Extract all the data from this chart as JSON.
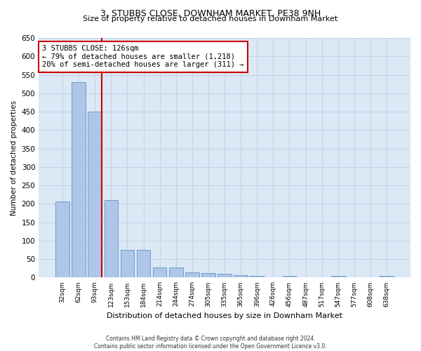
{
  "title": "3, STUBBS CLOSE, DOWNHAM MARKET, PE38 9NH",
  "subtitle": "Size of property relative to detached houses in Downham Market",
  "xlabel": "Distribution of detached houses by size in Downham Market",
  "ylabel": "Number of detached properties",
  "categories": [
    "32sqm",
    "62sqm",
    "93sqm",
    "123sqm",
    "153sqm",
    "184sqm",
    "214sqm",
    "244sqm",
    "274sqm",
    "305sqm",
    "335sqm",
    "365sqm",
    "396sqm",
    "426sqm",
    "456sqm",
    "487sqm",
    "517sqm",
    "547sqm",
    "577sqm",
    "608sqm",
    "638sqm"
  ],
  "values": [
    207,
    530,
    450,
    210,
    75,
    75,
    27,
    27,
    15,
    12,
    10,
    7,
    5,
    0,
    5,
    0,
    0,
    5,
    0,
    0,
    5
  ],
  "bar_color": "#aec6e8",
  "bar_edge_color": "#6aa0c8",
  "marker_label": "3 STUBBS CLOSE: 126sqm",
  "annotation_line1": "← 79% of detached houses are smaller (1,218)",
  "annotation_line2": "20% of semi-detached houses are larger (311) →",
  "annotation_box_color": "#ffffff",
  "annotation_box_edge": "#cc0000",
  "marker_line_color": "#cc0000",
  "background_color": "#dce8f5",
  "grid_color": "#c5d5e5",
  "footer_line1": "Contains HM Land Registry data © Crown copyright and database right 2024.",
  "footer_line2": "Contains public sector information licensed under the Open Government Licence v3.0.",
  "ylim": [
    0,
    650
  ],
  "yticks": [
    0,
    50,
    100,
    150,
    200,
    250,
    300,
    350,
    400,
    450,
    500,
    550,
    600,
    650
  ],
  "title_fontsize": 9,
  "subtitle_fontsize": 8
}
